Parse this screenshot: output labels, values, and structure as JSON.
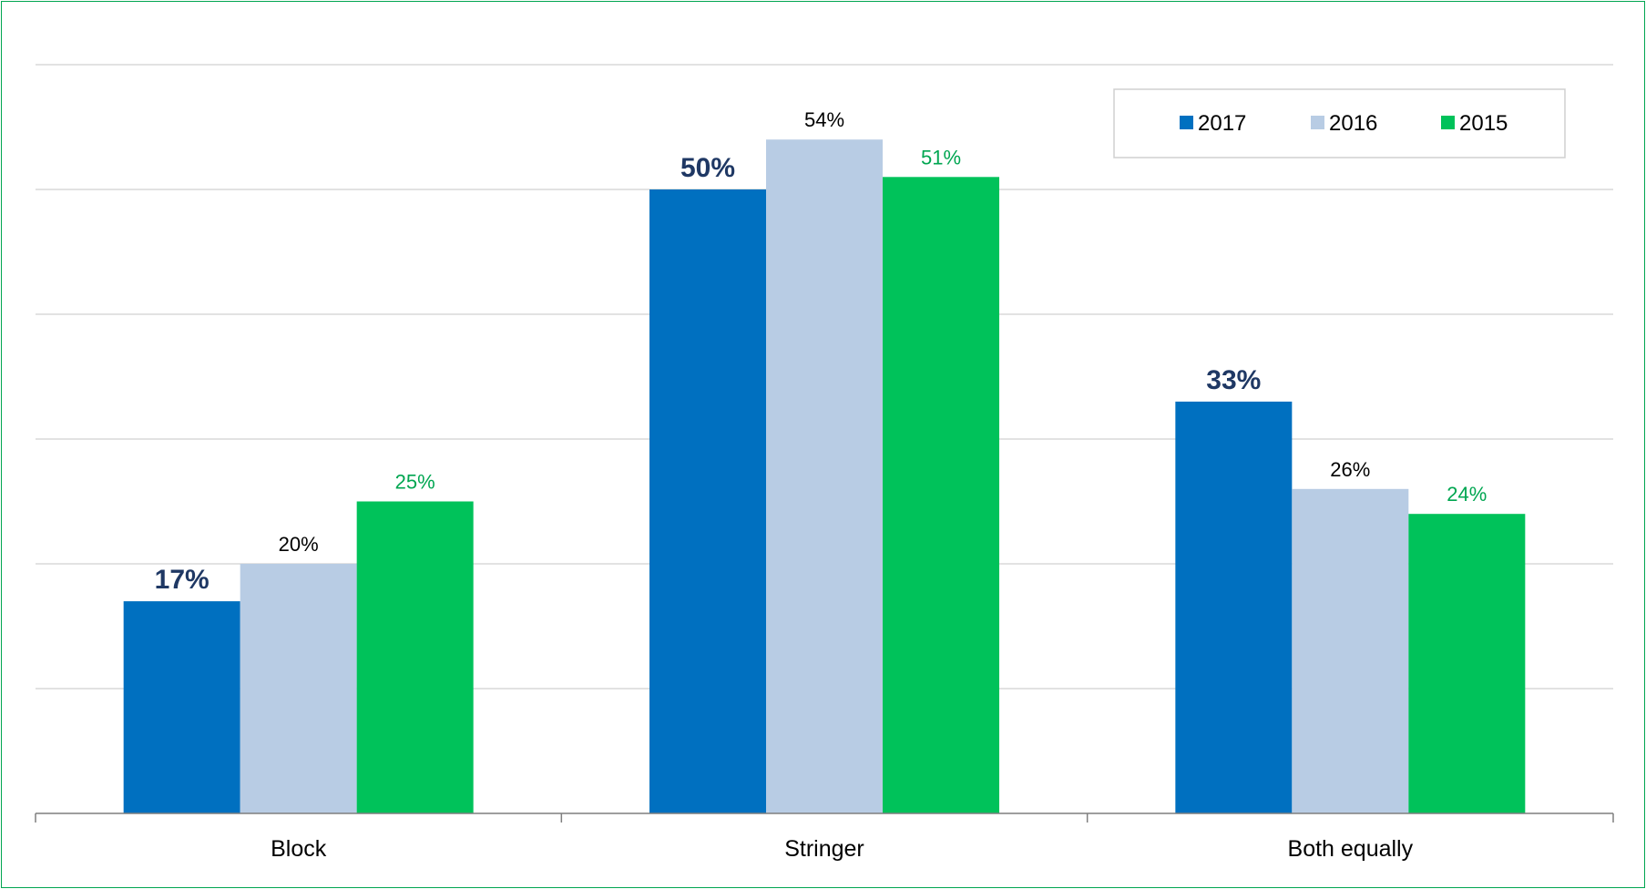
{
  "chart_data": {
    "type": "bar",
    "categories": [
      "Block",
      "Stringer",
      "Both equally"
    ],
    "series": [
      {
        "name": "2017",
        "values": [
          17,
          50,
          33
        ],
        "color": "#0070C0",
        "labels": [
          "17%",
          "50%",
          "33%"
        ],
        "label_color": "#1F3864"
      },
      {
        "name": "2016",
        "values": [
          20,
          54,
          26
        ],
        "color": "#B8CCE4",
        "labels": [
          "20%",
          "54%",
          "26%"
        ],
        "label_color": "#000000"
      },
      {
        "name": "2015",
        "values": [
          25,
          51,
          24
        ],
        "color": "#00C25A",
        "labels": [
          "25%",
          "51%",
          "24%"
        ],
        "label_color": "#00A651"
      }
    ],
    "ylim": [
      0,
      60
    ],
    "grid": true,
    "legend_position": "top-right",
    "title": "",
    "xlabel": "",
    "ylabel": ""
  }
}
